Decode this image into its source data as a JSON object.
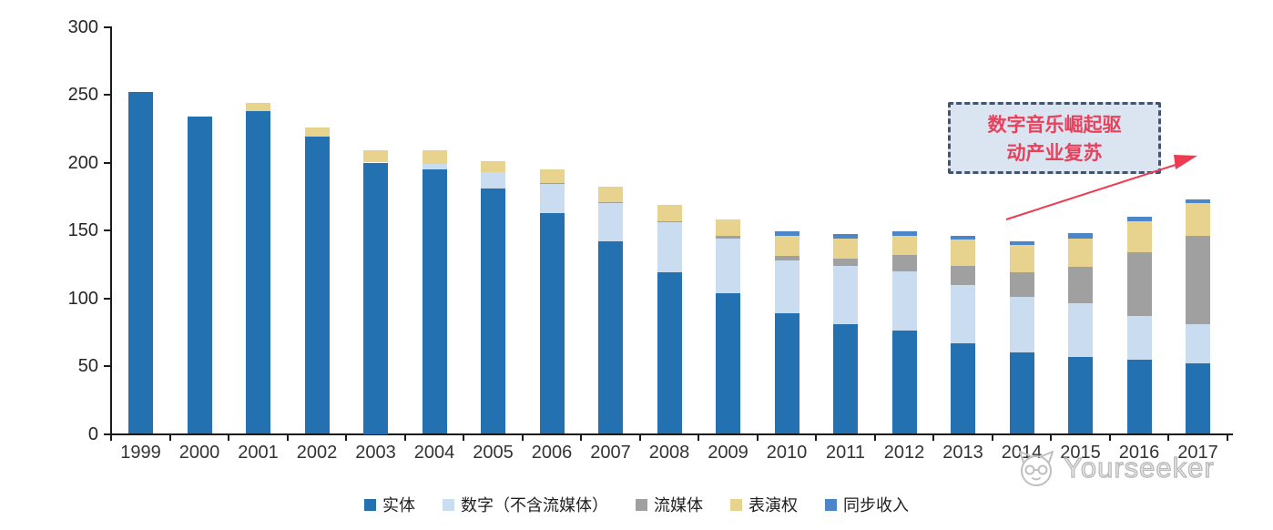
{
  "chart_data": {
    "type": "bar",
    "stacked": true,
    "title": "",
    "categories": [
      "1999",
      "2000",
      "2001",
      "2002",
      "2003",
      "2004",
      "2005",
      "2006",
      "2007",
      "2008",
      "2009",
      "2010",
      "2011",
      "2012",
      "2013",
      "2014",
      "2015",
      "2016",
      "2017"
    ],
    "series": [
      {
        "id": "physical",
        "name": "实体",
        "color": "#2371B0",
        "values": [
          252,
          234,
          238,
          219,
          200,
          195,
          181,
          163,
          142,
          119,
          104,
          89,
          81,
          76,
          67,
          60,
          57,
          55,
          52
        ]
      },
      {
        "id": "digital-excl-streaming",
        "name": "数字（不含流媒体）",
        "color": "#C9DCF0",
        "values": [
          0,
          0,
          0,
          0,
          0,
          4,
          12,
          21,
          28,
          37,
          40,
          39,
          43,
          44,
          43,
          41,
          39,
          32,
          29
        ]
      },
      {
        "id": "streaming",
        "name": "流媒体",
        "color": "#A0A0A0",
        "values": [
          0,
          0,
          0,
          0,
          0,
          0,
          0,
          1,
          1,
          1,
          2,
          3,
          5,
          12,
          14,
          18,
          27,
          47,
          65
        ]
      },
      {
        "id": "performance-rights",
        "name": "表演权",
        "color": "#E7D28E",
        "values": [
          0,
          0,
          6,
          7,
          9,
          10,
          8,
          10,
          11,
          12,
          12,
          15,
          15,
          14,
          19,
          20,
          21,
          23,
          24
        ]
      },
      {
        "id": "sync-revenue",
        "name": "同步收入",
        "color": "#4C86C8",
        "values": [
          0,
          0,
          0,
          0,
          0,
          0,
          0,
          0,
          0,
          0,
          0,
          3,
          3,
          3,
          3,
          3,
          4,
          3,
          3
        ]
      }
    ],
    "ylim": [
      0,
      300
    ],
    "yticks": [
      0,
      50,
      100,
      150,
      200,
      250,
      300
    ],
    "grid": false,
    "legend_position": "bottom"
  },
  "annotation": {
    "line1": "数字音乐崛起驱",
    "line2": "动产业复苏",
    "text_color": "#E8415C",
    "box_fill": "#DBE5F1",
    "box_border": "#44546A",
    "arrow_color": "#ED3B52"
  },
  "watermark": {
    "text": "Yourseeker",
    "color": "#C6C6C6"
  }
}
